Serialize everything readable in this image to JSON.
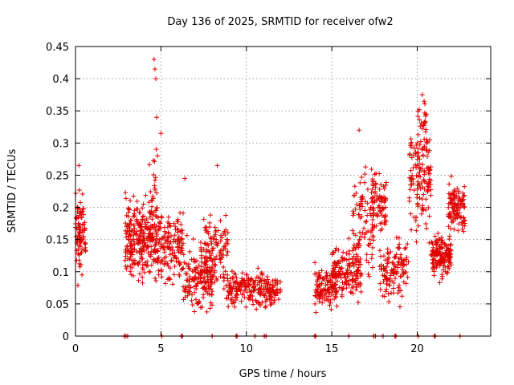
{
  "chart_data": {
    "type": "scatter",
    "title": "Day 136 of 2025, SRMTID for receiver ofw2",
    "xlabel": "GPS time / hours",
    "ylabel": "SRMTID / TECUs",
    "xlim": [
      0,
      24.3
    ],
    "ylim": [
      0,
      0.45
    ],
    "x_ticks": [
      0,
      5,
      10,
      15,
      20
    ],
    "x_tick_labels": [
      "0",
      "5",
      "10",
      "15",
      "20"
    ],
    "y_ticks": [
      0,
      0.05,
      0.1,
      0.15,
      0.2,
      0.25,
      0.3,
      0.35,
      0.4,
      0.45
    ],
    "y_tick_labels": [
      "0",
      "0.05",
      "0.1",
      "0.15",
      "0.2",
      "0.25",
      "0.3",
      "0.35",
      "0.4",
      "0.45"
    ],
    "grid": true,
    "marker": "+",
    "color": "#e00000",
    "clusters": [
      {
        "x_range": [
          0.0,
          0.6
        ],
        "y_center": 0.16,
        "y_spread": 0.05,
        "count": 90
      },
      {
        "x_range": [
          2.9,
          4.5
        ],
        "y_center": 0.15,
        "y_spread": 0.045,
        "count": 230
      },
      {
        "x_range": [
          4.3,
          4.8
        ],
        "y_center": 0.2,
        "y_spread": 0.08,
        "count": 40
      },
      {
        "x_range": [
          4.5,
          6.3
        ],
        "y_center": 0.14,
        "y_spread": 0.045,
        "count": 170
      },
      {
        "x_range": [
          6.3,
          8.0
        ],
        "y_center": 0.09,
        "y_spread": 0.035,
        "count": 150
      },
      {
        "x_range": [
          7.3,
          9.0
        ],
        "y_center": 0.13,
        "y_spread": 0.045,
        "count": 130
      },
      {
        "x_range": [
          8.8,
          10.3
        ],
        "y_center": 0.075,
        "y_spread": 0.02,
        "count": 110
      },
      {
        "x_range": [
          10.3,
          12.0
        ],
        "y_center": 0.07,
        "y_spread": 0.02,
        "count": 120
      },
      {
        "x_range": [
          14.0,
          15.3
        ],
        "y_center": 0.075,
        "y_spread": 0.025,
        "count": 110
      },
      {
        "x_range": [
          15.0,
          16.8
        ],
        "y_center": 0.095,
        "y_spread": 0.03,
        "count": 150
      },
      {
        "x_range": [
          16.2,
          17.5
        ],
        "y_center": 0.17,
        "y_spread": 0.06,
        "count": 90
      },
      {
        "x_range": [
          17.3,
          18.2
        ],
        "y_center": 0.21,
        "y_spread": 0.04,
        "count": 80
      },
      {
        "x_range": [
          17.8,
          19.5
        ],
        "y_center": 0.1,
        "y_spread": 0.035,
        "count": 120
      },
      {
        "x_range": [
          19.5,
          20.8
        ],
        "y_center": 0.24,
        "y_spread": 0.065,
        "count": 130
      },
      {
        "x_range": [
          20.0,
          20.6
        ],
        "y_center": 0.33,
        "y_spread": 0.04,
        "count": 30
      },
      {
        "x_range": [
          20.8,
          22.0
        ],
        "y_center": 0.125,
        "y_spread": 0.025,
        "count": 150
      },
      {
        "x_range": [
          21.8,
          22.8
        ],
        "y_center": 0.2,
        "y_spread": 0.03,
        "count": 110
      }
    ],
    "extreme_points": [
      {
        "x": 4.6,
        "y": 0.43
      },
      {
        "x": 4.65,
        "y": 0.415
      },
      {
        "x": 4.7,
        "y": 0.4
      },
      {
        "x": 4.75,
        "y": 0.34
      },
      {
        "x": 4.8,
        "y": 0.28
      },
      {
        "x": 5.0,
        "y": 0.315
      },
      {
        "x": 20.3,
        "y": 0.375
      },
      {
        "x": 20.4,
        "y": 0.365
      },
      {
        "x": 16.6,
        "y": 0.32
      },
      {
        "x": 0.2,
        "y": 0.265
      },
      {
        "x": 8.3,
        "y": 0.265
      },
      {
        "x": 6.4,
        "y": 0.245
      }
    ],
    "zero_line_marks_x": [
      2.85,
      2.95,
      3.05,
      5.05,
      6.2,
      6.25,
      8.0,
      9.4,
      9.45,
      10.5,
      11.05,
      11.15,
      14.0,
      14.05,
      16.0,
      17.45,
      17.55,
      18.0,
      18.7,
      18.75,
      20.05,
      21.0,
      21.05,
      22.5
    ]
  }
}
